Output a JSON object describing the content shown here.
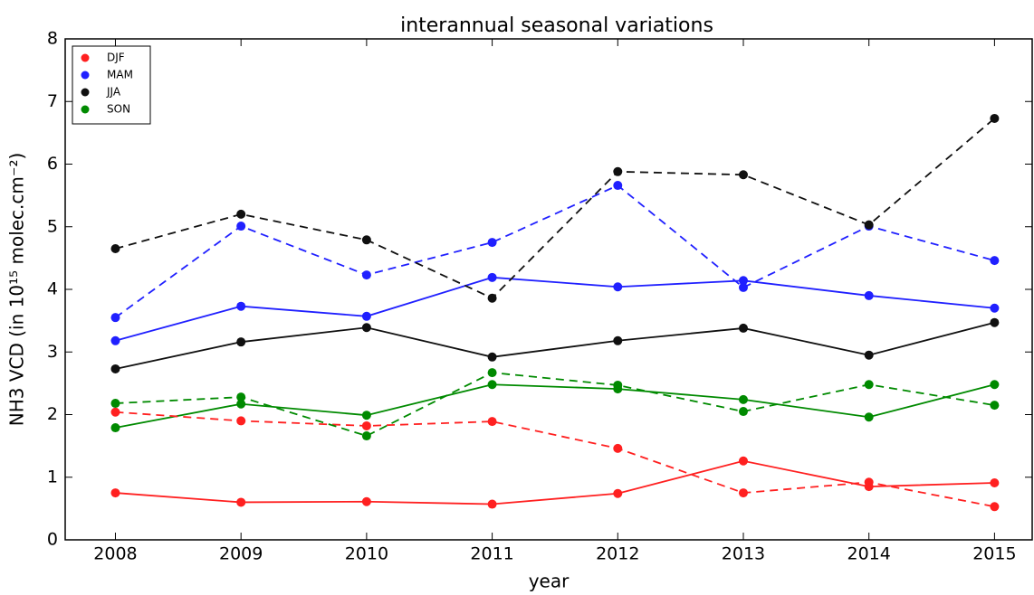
{
  "chart_data": {
    "type": "line",
    "title": "interannual seasonal variations",
    "x_label": "year",
    "y_label": "NH3 VCD (in 10¹⁵ molec.cm⁻²)",
    "x": [
      2008,
      2009,
      2010,
      2011,
      2012,
      2013,
      2014,
      2015
    ],
    "xlim": [
      2007.6,
      2015.3
    ],
    "xticks": [
      2008,
      2009,
      2010,
      2011,
      2012,
      2013,
      2014,
      2015
    ],
    "ylim": [
      0,
      8
    ],
    "yticks": [
      0,
      1,
      2,
      3,
      4,
      5,
      6,
      7,
      8
    ],
    "grid": false,
    "legend": "upper left",
    "series": [
      {
        "name": "DJF",
        "color": "#ff2020",
        "style": "solid",
        "values": [
          0.75,
          0.6,
          0.61,
          0.57,
          0.74,
          1.26,
          0.85,
          0.91
        ]
      },
      {
        "name": "MAM",
        "color": "#2020ff",
        "style": "solid",
        "values": [
          3.18,
          3.73,
          3.57,
          4.19,
          4.04,
          4.14,
          3.9,
          3.7
        ]
      },
      {
        "name": "JJA",
        "color": "#101010",
        "style": "solid",
        "values": [
          2.73,
          3.16,
          3.39,
          2.92,
          3.18,
          3.38,
          2.95,
          3.47
        ]
      },
      {
        "name": "SON",
        "color": "#008a00",
        "style": "solid",
        "values": [
          1.79,
          2.17,
          1.99,
          2.48,
          2.41,
          2.24,
          1.96,
          2.48
        ]
      },
      {
        "color": "#ff2020",
        "style": "dashed",
        "values": [
          2.04,
          1.9,
          1.82,
          1.89,
          1.46,
          0.75,
          0.92,
          0.53
        ]
      },
      {
        "color": "#2020ff",
        "style": "dashed",
        "values": [
          3.55,
          5.01,
          4.23,
          4.75,
          5.66,
          4.03,
          5.01,
          4.46
        ]
      },
      {
        "color": "#101010",
        "style": "dashed",
        "values": [
          4.65,
          5.2,
          4.79,
          3.86,
          5.88,
          5.83,
          5.03,
          6.73
        ]
      },
      {
        "color": "#008a00",
        "style": "dashed",
        "values": [
          2.18,
          2.28,
          1.66,
          2.67,
          2.47,
          2.05,
          2.48,
          2.15
        ]
      }
    ]
  }
}
